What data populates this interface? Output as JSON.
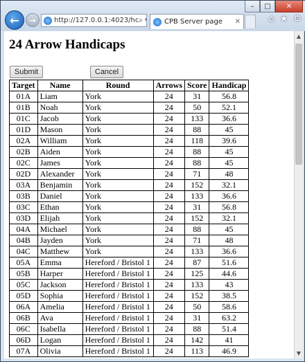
{
  "browser": {
    "url": "http://127.0.0.1:4023/hc",
    "tab_title": "CPB Server page",
    "window_buttons": [
      "–",
      "□",
      "✕"
    ],
    "tool_icons": [
      "⌂",
      "★",
      "⚙"
    ],
    "addr_icons": [
      "⌕ ▾",
      "↻"
    ]
  },
  "page": {
    "title": "24 Arrow Handicaps",
    "submit_label": "Submit",
    "cancel_label": "Cancel"
  },
  "table": {
    "headers": [
      "Target",
      "Name",
      "Round",
      "Arrows",
      "Score",
      "Handicap"
    ],
    "rows": [
      [
        "01A",
        "Liam",
        "York",
        "24",
        "31",
        "56.8"
      ],
      [
        "01B",
        "Noah",
        "York",
        "24",
        "50",
        "52.1"
      ],
      [
        "01C",
        "Jacob",
        "York",
        "24",
        "133",
        "36.6"
      ],
      [
        "01D",
        "Mason",
        "York",
        "24",
        "88",
        "45"
      ],
      [
        "02A",
        "William",
        "York",
        "24",
        "118",
        "39.6"
      ],
      [
        "02B",
        "Aiden",
        "York",
        "24",
        "88",
        "45"
      ],
      [
        "02C",
        "James",
        "York",
        "24",
        "88",
        "45"
      ],
      [
        "02D",
        "Alexander",
        "York",
        "24",
        "71",
        "48"
      ],
      [
        "03A",
        "Benjamin",
        "York",
        "24",
        "152",
        "32.1"
      ],
      [
        "03B",
        "Daniel",
        "York",
        "24",
        "133",
        "36.6"
      ],
      [
        "03C",
        "Ethan",
        "York",
        "24",
        "31",
        "56.8"
      ],
      [
        "03D",
        "Elijah",
        "York",
        "24",
        "152",
        "32.1"
      ],
      [
        "04A",
        "Michael",
        "York",
        "24",
        "88",
        "45"
      ],
      [
        "04B",
        "Jayden",
        "York",
        "24",
        "71",
        "48"
      ],
      [
        "04C",
        "Matthew",
        "York",
        "24",
        "133",
        "36.6"
      ],
      [
        "05A",
        "Emma",
        "Hereford / Bristol 1",
        "24",
        "87",
        "51.6"
      ],
      [
        "05B",
        "Harper",
        "Hereford / Bristol 1",
        "24",
        "125",
        "44.6"
      ],
      [
        "05C",
        "Jackson",
        "Hereford / Bristol 1",
        "24",
        "133",
        "43"
      ],
      [
        "05D",
        "Sophia",
        "Hereford / Bristol 1",
        "24",
        "152",
        "38.5"
      ],
      [
        "06A",
        "Amelia",
        "Hereford / Bristol 1",
        "24",
        "50",
        "58.6"
      ],
      [
        "06B",
        "Ava",
        "Hereford / Bristol 1",
        "24",
        "31",
        "63.2"
      ],
      [
        "06C",
        "Isabella",
        "Hereford / Bristol 1",
        "24",
        "88",
        "51.4"
      ],
      [
        "06D",
        "Logan",
        "Hereford / Bristol 1",
        "24",
        "142",
        "41"
      ],
      [
        "07A",
        "Olivia",
        "Hereford / Bristol 1",
        "24",
        "113",
        "46.9"
      ]
    ]
  }
}
